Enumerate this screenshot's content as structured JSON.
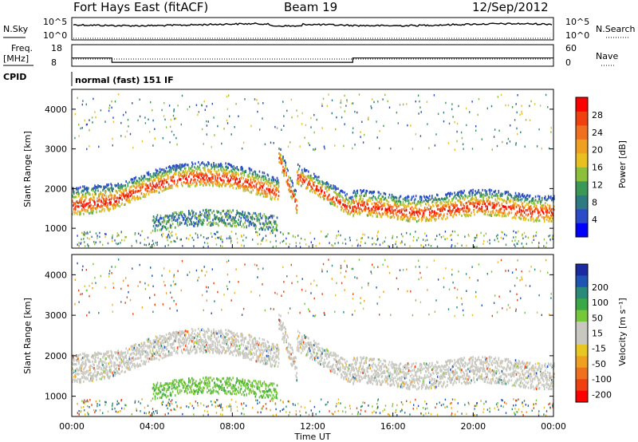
{
  "header": {
    "station": "Fort Hays East (fitACF)",
    "beam": "Beam 19",
    "date": "12/Sep/2012"
  },
  "side_labels": {
    "nsky": "N.Sky",
    "nsearch": "N.Search",
    "freq_line1": "Freq.",
    "freq_line2": "[MHz]",
    "nave": "Nave",
    "cpid": "CPID"
  },
  "cpid_text": "normal (fast) 151 IF",
  "chart_data": [
    {
      "type": "line",
      "name": "noise",
      "y_left_ticks": [
        "10^5",
        "10^0"
      ],
      "y_right_ticks": [
        "10^5",
        "10^0"
      ],
      "nsky_level_log10": 4.2
    },
    {
      "type": "line",
      "name": "frequency",
      "y_left_ticks": [
        "18",
        "8"
      ],
      "y_right_ticks": [
        "60",
        "0"
      ],
      "freq_steps": [
        {
          "t_start": 0.0,
          "t_end": 2.0,
          "freq_mhz": 12.0
        },
        {
          "t_start": 2.0,
          "t_end": 14.0,
          "freq_mhz": 10.0
        },
        {
          "t_start": 14.0,
          "t_end": 24.0,
          "freq_mhz": 12.0
        }
      ],
      "nave_level": 20
    },
    {
      "type": "heatmap",
      "name": "power",
      "ylabel": "Slant Range [km]",
      "y_ticks": [
        1000,
        2000,
        3000,
        4000
      ],
      "ylim": [
        500,
        4500
      ],
      "xlim": [
        0,
        24
      ],
      "colorbar": {
        "label": "Power [dB]",
        "ticks": [
          "4",
          "8",
          "12",
          "16",
          "20",
          "24",
          "28"
        ],
        "colors": [
          "#0000ff",
          "#2b4cc8",
          "#2e7a82",
          "#3a9a55",
          "#8cbf3a",
          "#e8c020",
          "#f0a020",
          "#f07020",
          "#f04010",
          "#ff0000"
        ]
      }
    },
    {
      "type": "heatmap",
      "name": "velocity",
      "ylabel": "Slant Range [km]",
      "xlabel": "Time UT",
      "y_ticks": [
        1000,
        2000,
        3000,
        4000
      ],
      "ylim": [
        500,
        4500
      ],
      "xlim": [
        0,
        24
      ],
      "x_ticks": [
        "00:00",
        "04:00",
        "08:00",
        "12:00",
        "16:00",
        "20:00",
        "00:00"
      ],
      "colorbar": {
        "label": "Velocity [m s⁻¹]",
        "ticks": [
          "200",
          "100",
          "50",
          "15",
          "-15",
          "-50",
          "-100",
          "-200"
        ],
        "colors": [
          "#1a2aa0",
          "#1e55b4",
          "#2a8a7a",
          "#3aa845",
          "#76c83a",
          "#c8c8c0",
          "#c8c8c0",
          "#e8c820",
          "#f0a020",
          "#f07020",
          "#f04010",
          "#ff0000"
        ]
      }
    }
  ]
}
